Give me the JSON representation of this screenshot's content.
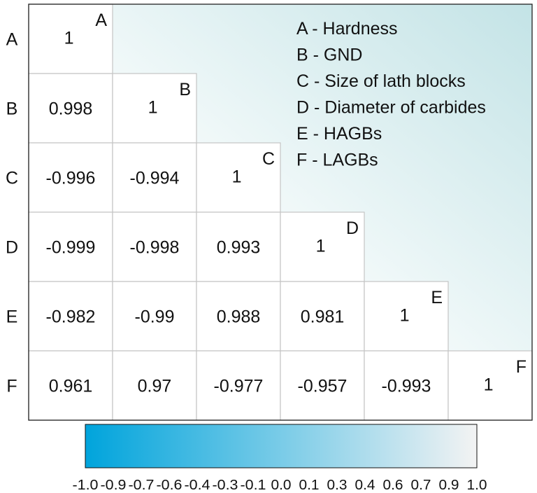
{
  "chart_data": {
    "type": "heatmap",
    "variables": [
      "A",
      "B",
      "C",
      "D",
      "E",
      "F"
    ],
    "matrix_lower": [
      [
        "1"
      ],
      [
        "0.998",
        "1"
      ],
      [
        "-0.996",
        "-0.994",
        "1"
      ],
      [
        "-0.999",
        "-0.998",
        "0.993",
        "1"
      ],
      [
        "-0.982",
        "-0.99",
        "0.988",
        "0.981",
        "1"
      ],
      [
        "0.961",
        "0.97",
        "-0.977",
        "-0.957",
        "-0.993",
        "1"
      ]
    ],
    "legend": [
      "A - Hardness",
      "B - GND",
      "C - Size of lath blocks",
      "D - Diameter of carbides",
      "E - HAGBs",
      "F - LAGBs"
    ],
    "colorbar": {
      "range": [
        -1.0,
        1.0
      ],
      "colors": [
        "#00a4dc",
        "#f3f3f3"
      ],
      "tick_labels": [
        "-1.0",
        "-0.9",
        "-0.7",
        "-0.6",
        "-0.4",
        "-0.3",
        "-0.1",
        "0.0",
        "0.1",
        "0.3",
        "0.4",
        "0.6",
        "0.7",
        "0.9",
        "1.0"
      ]
    },
    "colors": {
      "background_gradient_start": "#ffffff",
      "background_gradient_end": "#c3e3e6",
      "cell_fill": "#ffffff",
      "grid_line": "#c4c4c4",
      "frame": "#222222"
    }
  }
}
